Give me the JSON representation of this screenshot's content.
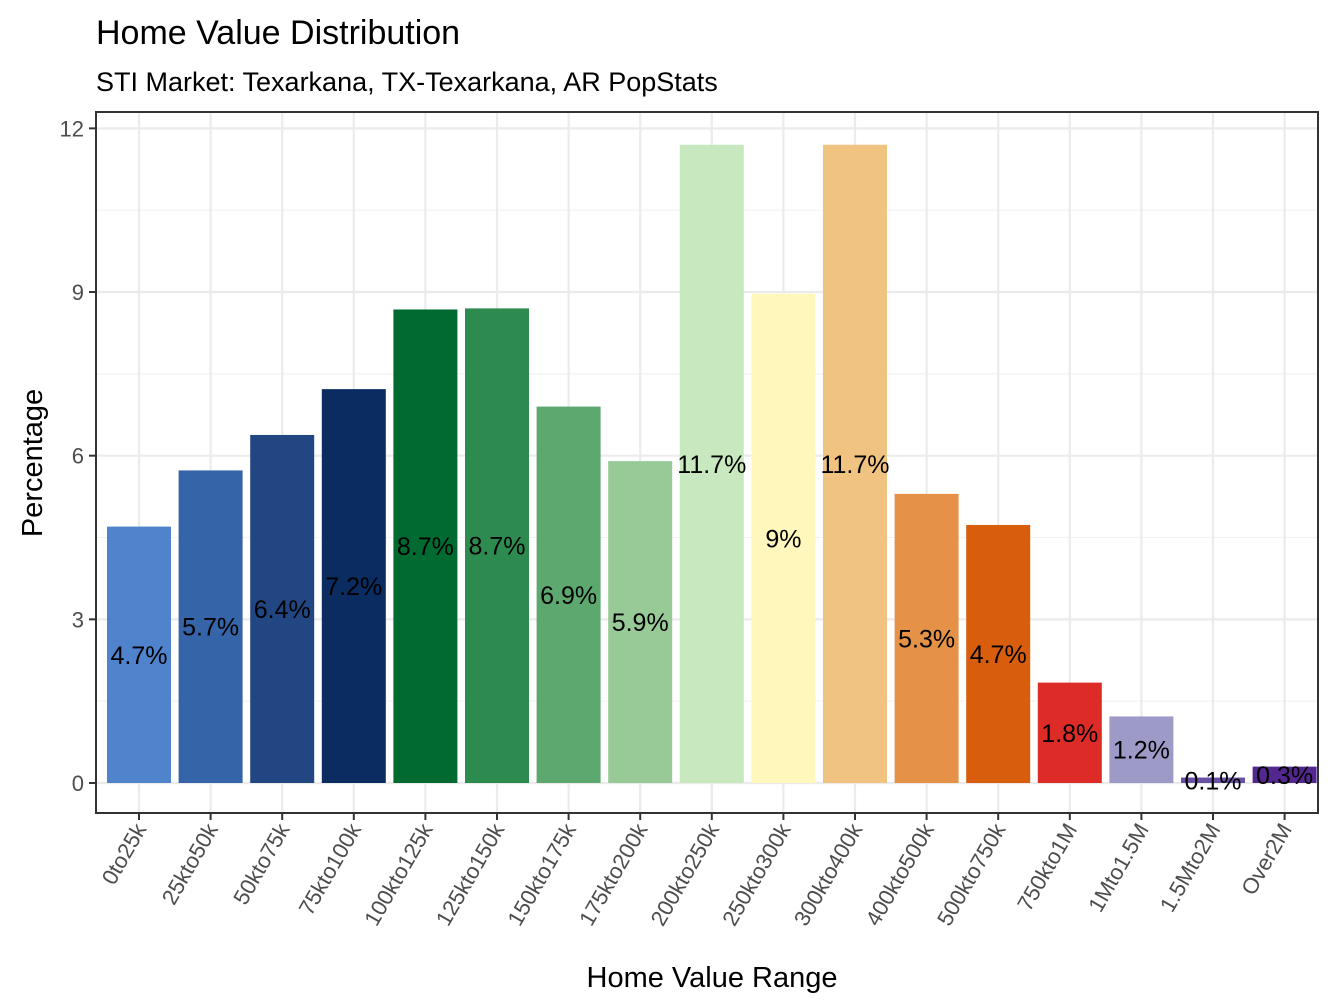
{
  "chart_data": {
    "type": "bar",
    "title": "Home Value Distribution",
    "subtitle": "STI Market: Texarkana, TX-Texarkana, AR PopStats",
    "xlabel": "Home Value Range",
    "ylabel": "Percentage",
    "ylim": [
      -0.55,
      12.3
    ],
    "yticks": [
      0,
      3,
      6,
      9,
      12
    ],
    "ytick_labels": [
      "0",
      "3",
      "6",
      "9",
      "12"
    ],
    "grid": true,
    "categories": [
      "0to25k",
      "25kto50k",
      "50kto75k",
      "75kto100k",
      "100kto125k",
      "125kto150k",
      "150kto175k",
      "175kto200k",
      "200kto250k",
      "250kto300k",
      "300kto400k",
      "400kto500k",
      "500kto750k",
      "750kto1M",
      "1Mto1.5M",
      "1.5Mto2M",
      "Over2M"
    ],
    "values": [
      4.7,
      5.73,
      6.38,
      7.22,
      8.68,
      8.7,
      6.9,
      5.9,
      11.7,
      8.97,
      11.7,
      5.3,
      4.73,
      1.84,
      1.22,
      0.1,
      0.3
    ],
    "data_labels": [
      "4.7%",
      "5.7%",
      "6.4%",
      "7.2%",
      "8.7%",
      "8.7%",
      "6.9%",
      "5.9%",
      "11.7%",
      "9%",
      "11.7%",
      "5.3%",
      "4.7%",
      "1.8%",
      "1.2%",
      "0.1%",
      "0.3%"
    ],
    "colors": [
      "#4F83CC",
      "#3564A8",
      "#214682",
      "#0A2C60",
      "#006A30",
      "#2E8B50",
      "#5DA86E",
      "#98CA98",
      "#C8E8C0",
      "#FFF7BC",
      "#F0C380",
      "#E59147",
      "#D85E0E",
      "#DD2B27",
      "#9E9AC8",
      "#6A51A3",
      "#54278F"
    ]
  }
}
